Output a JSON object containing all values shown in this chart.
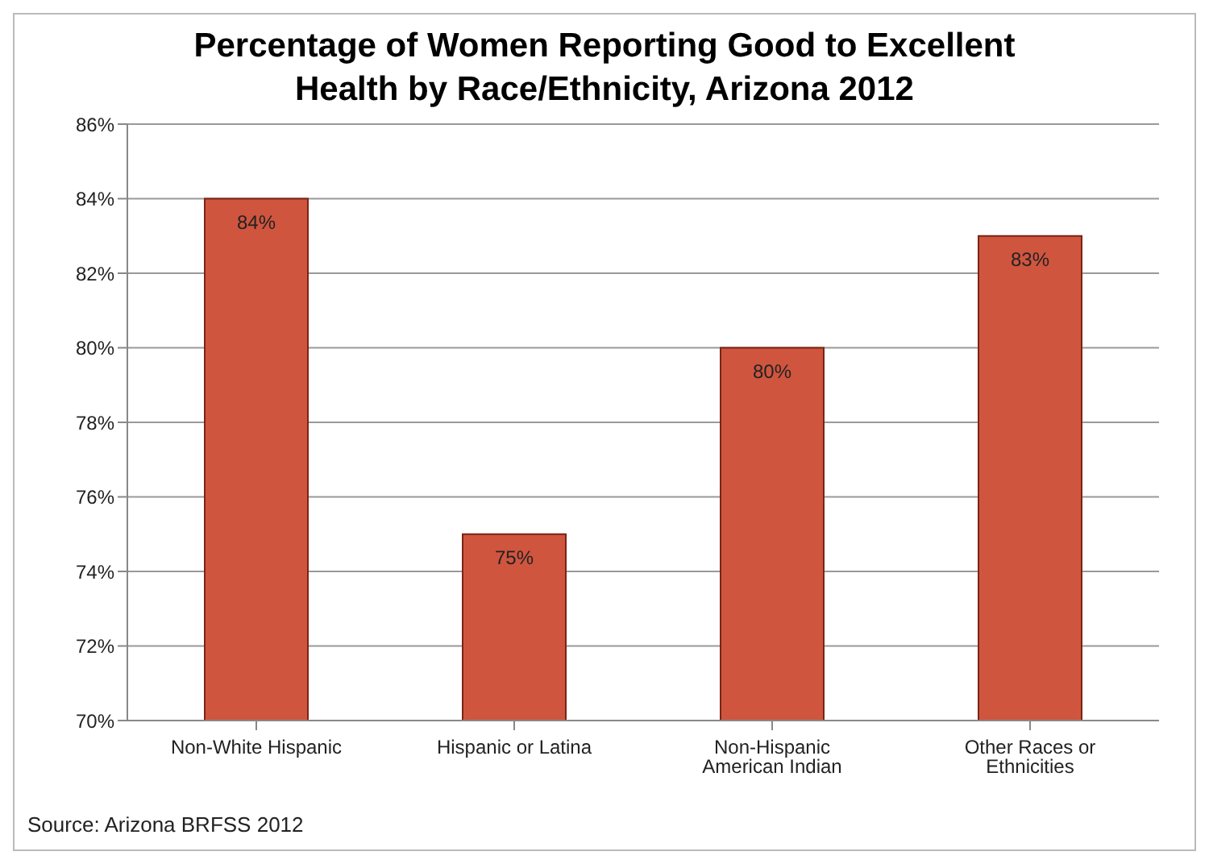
{
  "chart_data": {
    "type": "bar",
    "title": "Percentage of Women Reporting Good to Excellent Health by Race/Ethnicity, Arizona 2012",
    "categories": [
      "Non-White Hispanic",
      "Hispanic or Latina",
      "Non-Hispanic American Indian",
      "Other Races or Ethnicities"
    ],
    "values": [
      84,
      75,
      80,
      83
    ],
    "value_labels": [
      "84%",
      "75%",
      "80%",
      "83%"
    ],
    "color": "#d0553f",
    "ylim": [
      70,
      86
    ],
    "yticks": [
      {
        "value": 70,
        "label": "70%"
      },
      {
        "value": 72,
        "label": "72%"
      },
      {
        "value": 74,
        "label": "74%"
      },
      {
        "value": 76,
        "label": "76%"
      },
      {
        "value": 78,
        "label": "78%"
      },
      {
        "value": 80,
        "label": "80%"
      },
      {
        "value": 82,
        "label": "82%"
      },
      {
        "value": 84,
        "label": "84%"
      },
      {
        "value": 86,
        "label": "86%"
      }
    ],
    "grid": "y",
    "annotations": [
      "Source: Arizona BRFSS 2012"
    ]
  }
}
